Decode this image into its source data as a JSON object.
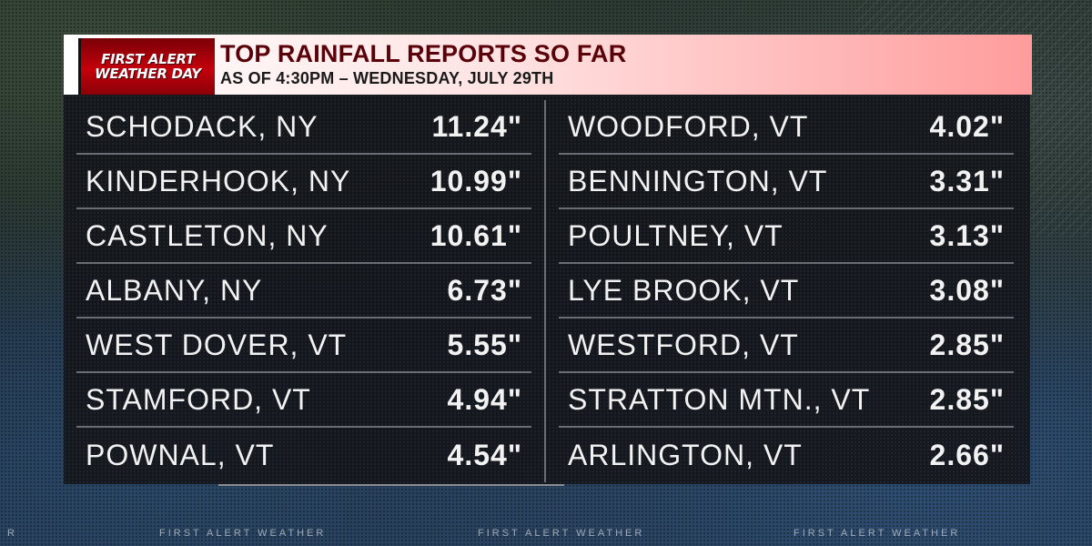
{
  "header": {
    "badge_line1": "FIRST ALERT",
    "badge_line2": "WEATHER DAY",
    "title": "TOP RAINFALL REPORTS SO FAR",
    "subtitle": "AS OF 4:30PM – WEDNESDAY, JULY 29TH"
  },
  "reports_left": [
    {
      "location": "SCHODACK, NY",
      "amount": "11.24\""
    },
    {
      "location": "KINDERHOOK, NY",
      "amount": "10.99\""
    },
    {
      "location": "CASTLETON, NY",
      "amount": "10.61\""
    },
    {
      "location": "ALBANY, NY",
      "amount": "6.73\""
    },
    {
      "location": "WEST DOVER, VT",
      "amount": "5.55\""
    },
    {
      "location": "STAMFORD, VT",
      "amount": "4.94\""
    },
    {
      "location": "POWNAL, VT",
      "amount": "4.54\""
    }
  ],
  "reports_right": [
    {
      "location": "WOODFORD, VT",
      "amount": "4.02\""
    },
    {
      "location": "BENNINGTON, VT",
      "amount": "3.31\""
    },
    {
      "location": "POULTNEY, VT",
      "amount": "3.13\""
    },
    {
      "location": "LYE BROOK, VT",
      "amount": "3.08\""
    },
    {
      "location": "WESTFORD, VT",
      "amount": "2.85\""
    },
    {
      "location": "STRATTON MTN., VT",
      "amount": "2.85\""
    },
    {
      "location": "ARLINGTON, VT",
      "amount": "2.66\""
    }
  ],
  "ticker": {
    "items": [
      "R",
      "FIRST ALERT WEATHER",
      "FIRST ALERT WEATHER",
      "FIRST ALERT WEATHER"
    ]
  },
  "colors": {
    "badge_red": "#c4000c",
    "title_color": "#5a0008",
    "panel_bg": "#12141a",
    "row_divider": "#6a6d74"
  }
}
